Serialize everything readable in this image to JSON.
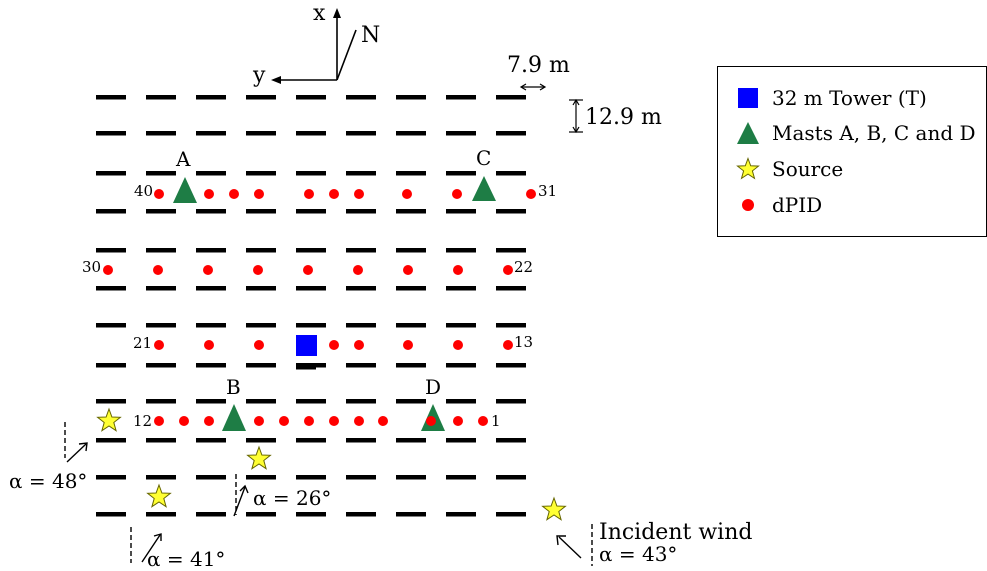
{
  "axes": {
    "x_label": "x",
    "y_label": "y",
    "north_label": "N"
  },
  "dimensions": {
    "row_spacing": "7.9 m",
    "column_spacing": "12.9 m"
  },
  "legend": [
    {
      "label": "32 m Tower (T)",
      "symbol": "blue-square",
      "color": "#0000ff"
    },
    {
      "label": "Masts A, B, C and D",
      "symbol": "green-triangle",
      "color": "#1e7d45"
    },
    {
      "label": "Source",
      "symbol": "yellow-star",
      "color": "#ffff33"
    },
    {
      "label": "dPID",
      "symbol": "red-dot",
      "color": "#ff0000"
    }
  ],
  "masts": [
    "A",
    "B",
    "C",
    "D"
  ],
  "dpid_numbers": [
    "1",
    "12",
    "13",
    "21",
    "22",
    "30",
    "31",
    "40"
  ],
  "wind": [
    {
      "label": "α = 48°"
    },
    {
      "label": "α = 41°"
    },
    {
      "label": "α = 26°"
    },
    {
      "label": "α = 43°",
      "title": "Incident wind"
    }
  ],
  "colors": {
    "obstacle": "#000000",
    "dpid": "#ff0000",
    "mast": "#1e7d45",
    "tower": "#0000ff",
    "source": "#ffff33"
  }
}
